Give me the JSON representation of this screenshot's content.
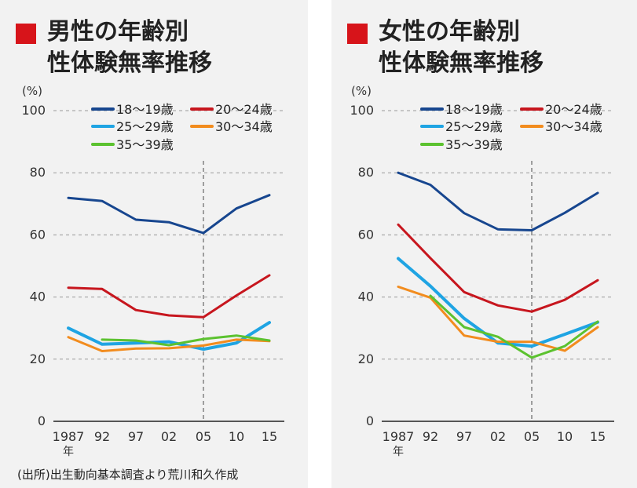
{
  "source_note": "(出所)出生動向基本調査より荒川和久作成",
  "chart_data": [
    {
      "type": "line",
      "title_line1": "男性の年齢別",
      "title_line2": "性体験無率推移",
      "unit_label": "(%)",
      "x": [
        1987,
        1992,
        1997,
        2002,
        2005,
        2010,
        2015
      ],
      "x_tick_labels": [
        "1987",
        "92",
        "97",
        "02",
        "05",
        "10",
        "15"
      ],
      "x_unit": "年",
      "ylim": [
        0,
        100
      ],
      "y_ticks": [
        0,
        20,
        40,
        60,
        80,
        100
      ],
      "reference_line_x": 2005,
      "series": [
        {
          "name": "18〜19歳",
          "color": "#17468f",
          "values": [
            71.9,
            70.9,
            64.9,
            64.1,
            60.6,
            68.5,
            72.8
          ]
        },
        {
          "name": "20〜24歳",
          "color": "#c7161e",
          "values": [
            43.0,
            42.6,
            35.8,
            34.1,
            33.5,
            40.5,
            47.0
          ]
        },
        {
          "name": "25〜29歳",
          "color": "#1fa4e3",
          "values": [
            30.0,
            24.8,
            25.2,
            25.6,
            23.2,
            25.2,
            31.8
          ]
        },
        {
          "name": "30〜34歳",
          "color": "#f28c1e",
          "values": [
            27.1,
            22.6,
            23.4,
            23.5,
            24.4,
            26.3,
            25.8
          ]
        },
        {
          "name": "35〜39歳",
          "color": "#5cc230",
          "values": [
            null,
            26.3,
            26.0,
            24.5,
            26.5,
            27.6,
            26.0
          ]
        }
      ]
    },
    {
      "type": "line",
      "title_line1": "女性の年齢別",
      "title_line2": "性体験無率推移",
      "unit_label": "(%)",
      "x": [
        1987,
        1992,
        1997,
        2002,
        2005,
        2010,
        2015
      ],
      "x_tick_labels": [
        "1987",
        "92",
        "97",
        "02",
        "05",
        "10",
        "15"
      ],
      "x_unit": "年",
      "ylim": [
        0,
        100
      ],
      "y_ticks": [
        0,
        20,
        40,
        60,
        80,
        100
      ],
      "reference_line_x": 2005,
      "series": [
        {
          "name": "18〜19歳",
          "color": "#17468f",
          "values": [
            80.0,
            76.1,
            67.0,
            61.8,
            61.5,
            67.1,
            73.5
          ]
        },
        {
          "name": "20〜24歳",
          "color": "#c7161e",
          "values": [
            63.3,
            52.5,
            41.6,
            37.3,
            35.3,
            39.1,
            45.4
          ]
        },
        {
          "name": "25〜29歳",
          "color": "#1fa4e3",
          "values": [
            52.4,
            43.5,
            33.1,
            25.2,
            24.2,
            28.0,
            31.9
          ]
        },
        {
          "name": "30〜34歳",
          "color": "#f28c1e",
          "values": [
            43.3,
            39.8,
            27.6,
            25.6,
            25.6,
            22.7,
            30.3
          ]
        },
        {
          "name": "35〜39歳",
          "color": "#5cc230",
          "values": [
            null,
            40.4,
            30.3,
            27.2,
            20.5,
            24.2,
            32.1
          ]
        }
      ]
    }
  ]
}
